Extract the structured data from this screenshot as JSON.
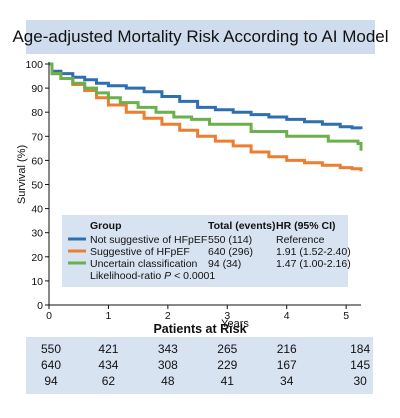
{
  "title": "Age-adjusted Mortality Risk According to AI Model",
  "chart_data": {
    "type": "line",
    "xlabel": "Years",
    "ylabel": "Survival (%)",
    "xlim": [
      0,
      5.25
    ],
    "ylim": [
      0,
      100
    ],
    "x_ticks": [
      0,
      1,
      2,
      3,
      4,
      5
    ],
    "y_ticks": [
      0,
      10,
      20,
      30,
      40,
      50,
      60,
      70,
      80,
      90,
      100
    ],
    "series": [
      {
        "name": "Not suggestive of HFpEF",
        "color": "#2f6fb0",
        "points": [
          [
            0,
            100
          ],
          [
            0.05,
            97
          ],
          [
            0.2,
            96
          ],
          [
            0.4,
            94.5
          ],
          [
            0.6,
            93.5
          ],
          [
            0.8,
            92
          ],
          [
            1.0,
            91
          ],
          [
            1.3,
            90
          ],
          [
            1.6,
            88.5
          ],
          [
            1.9,
            86.5
          ],
          [
            2.2,
            84.5
          ],
          [
            2.5,
            82
          ],
          [
            2.8,
            81
          ],
          [
            3.1,
            80
          ],
          [
            3.4,
            79
          ],
          [
            3.7,
            78
          ],
          [
            4.0,
            77
          ],
          [
            4.3,
            76
          ],
          [
            4.6,
            75
          ],
          [
            4.9,
            74
          ],
          [
            5.1,
            73.5
          ],
          [
            5.25,
            73
          ]
        ]
      },
      {
        "name": "Suggestive of HFpEF",
        "color": "#ec7d31",
        "points": [
          [
            0,
            100
          ],
          [
            0.05,
            96
          ],
          [
            0.2,
            94
          ],
          [
            0.4,
            91.5
          ],
          [
            0.6,
            89
          ],
          [
            0.8,
            86
          ],
          [
            1.0,
            83
          ],
          [
            1.3,
            80
          ],
          [
            1.6,
            77.5
          ],
          [
            1.9,
            75
          ],
          [
            2.2,
            72.5
          ],
          [
            2.5,
            70
          ],
          [
            2.8,
            68
          ],
          [
            3.1,
            66
          ],
          [
            3.4,
            63.5
          ],
          [
            3.7,
            61.5
          ],
          [
            4.0,
            60
          ],
          [
            4.3,
            59
          ],
          [
            4.6,
            58
          ],
          [
            4.9,
            57
          ],
          [
            5.1,
            56.5
          ],
          [
            5.25,
            55.5
          ]
        ]
      },
      {
        "name": "Uncertain classification",
        "color": "#6ab04c",
        "points": [
          [
            0,
            100
          ],
          [
            0.05,
            96
          ],
          [
            0.2,
            94
          ],
          [
            0.4,
            92
          ],
          [
            0.6,
            90
          ],
          [
            0.8,
            88
          ],
          [
            1.0,
            86
          ],
          [
            1.2,
            84
          ],
          [
            1.5,
            82
          ],
          [
            1.8,
            80
          ],
          [
            2.1,
            78
          ],
          [
            2.4,
            77
          ],
          [
            2.7,
            75
          ],
          [
            3.0,
            75
          ],
          [
            3.4,
            72
          ],
          [
            3.7,
            72
          ],
          [
            4.0,
            70
          ],
          [
            4.4,
            70
          ],
          [
            4.7,
            68
          ],
          [
            5.2,
            67
          ],
          [
            5.25,
            64
          ]
        ]
      }
    ],
    "legend": {
      "position": "bottom-left",
      "header": {
        "group": "Group",
        "total": "Total (events)",
        "hr": "HR (95% CI)"
      },
      "rows": [
        {
          "group": "Not suggestive of HFpEF",
          "total": "550 (114)",
          "hr": "Reference"
        },
        {
          "group": "Suggestive of HFpEF",
          "total": "640 (296)",
          "hr": "1.91 (1.52-2.40)"
        },
        {
          "group": "Uncertain classification",
          "total": "94 (34)",
          "hr": "1.47 (1.00-2.16)"
        }
      ],
      "footnote_prefix": "Likelihood-ratio ",
      "footnote_p": "P",
      "footnote_suffix": " < 0.0001"
    }
  },
  "risk_table": {
    "title": "Patients at Risk",
    "times": [
      0,
      1,
      2,
      3,
      4,
      5
    ],
    "rows": [
      [
        "550",
        "421",
        "343",
        "265",
        "216",
        "184"
      ],
      [
        "640",
        "434",
        "308",
        "229",
        "167",
        "145"
      ],
      [
        "94",
        "62",
        "48",
        "41",
        "34",
        "30"
      ]
    ]
  }
}
